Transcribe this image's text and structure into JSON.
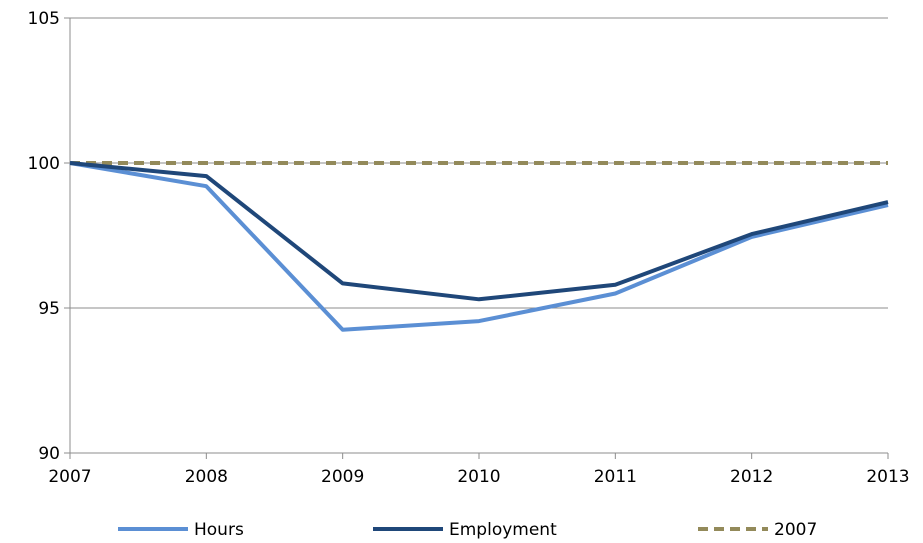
{
  "chart_data": {
    "type": "line",
    "title": "",
    "xlabel": "",
    "ylabel": "",
    "x": [
      "2007",
      "2008",
      "2009",
      "2010",
      "2011",
      "2012",
      "2013"
    ],
    "ylim": [
      90,
      105
    ],
    "yticks": [
      90,
      95,
      100,
      105
    ],
    "grid": "horizontal",
    "legend_position": "bottom",
    "series": [
      {
        "name": "Hours",
        "color": "#5B8FD4",
        "style": "solid",
        "values": [
          100,
          99.2,
          94.25,
          94.55,
          95.5,
          97.45,
          98.55
        ]
      },
      {
        "name": "Employment",
        "color": "#1F4779",
        "style": "solid",
        "values": [
          100,
          99.55,
          95.85,
          95.3,
          95.8,
          97.55,
          98.65
        ]
      },
      {
        "name": "2007",
        "color": "#938A5A",
        "style": "dashed",
        "values": [
          100,
          100,
          100,
          100,
          100,
          100,
          100
        ]
      }
    ]
  }
}
